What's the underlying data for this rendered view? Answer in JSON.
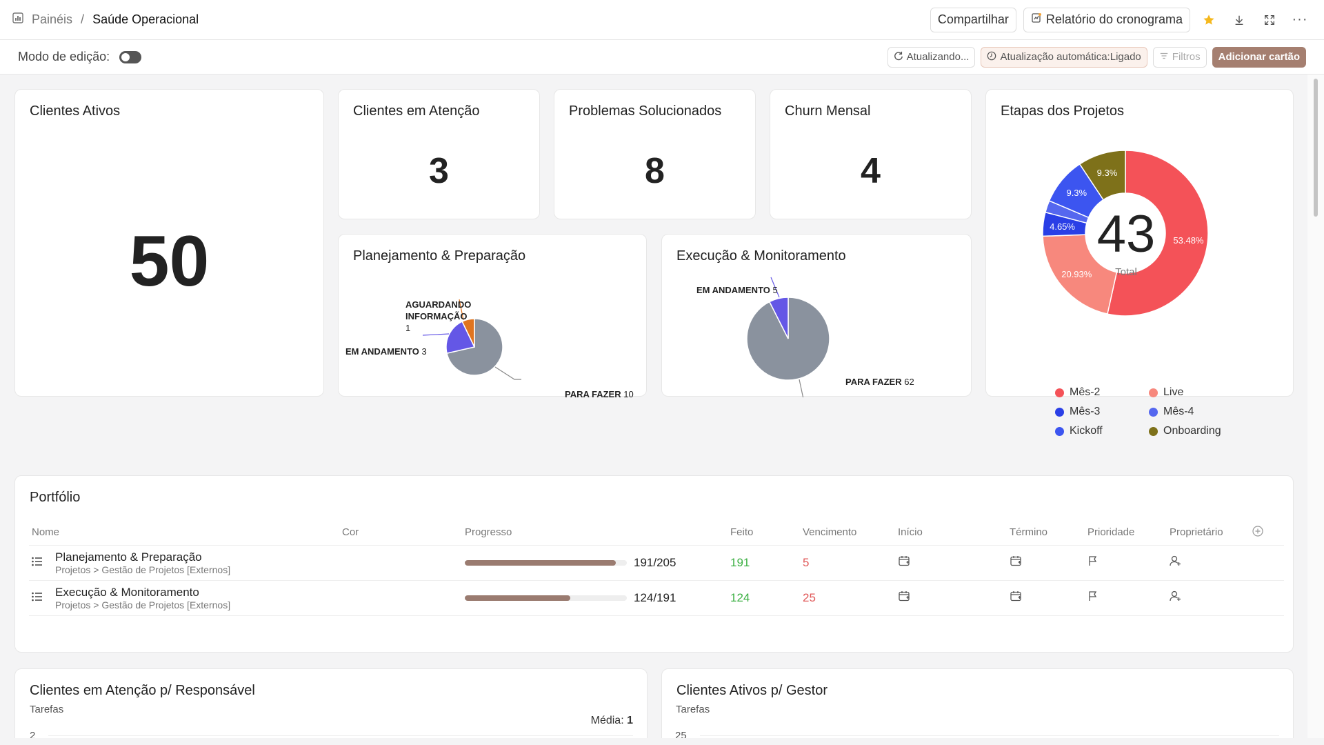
{
  "breadcrumb": {
    "parent": "Painéis",
    "separator": "/",
    "current": "Saúde Operacional"
  },
  "topbar": {
    "share": "Compartilhar",
    "report": "Relatório do cronograma"
  },
  "subbar": {
    "edit_mode": "Modo de edição:",
    "refreshing": "Atualizando...",
    "auto_refresh": "Atualização automática:Ligado",
    "filters": "Filtros",
    "add_card": "Adicionar cartão"
  },
  "cards": {
    "active_clients": {
      "title": "Clientes Ativos",
      "value": "50"
    },
    "attention_clients": {
      "title": "Clientes em Atenção",
      "value": "3"
    },
    "solved": {
      "title": "Problemas Solucionados",
      "value": "8"
    },
    "churn": {
      "title": "Churn Mensal",
      "value": "4"
    },
    "planning": {
      "title": "Planejamento & Preparação"
    },
    "execution": {
      "title": "Execução & Monitoramento"
    },
    "stages": {
      "title": "Etapas dos Projetos",
      "total_value": "43",
      "total_label": "Total"
    },
    "portfolio": {
      "title": "Portfólio"
    },
    "attention_by_owner": {
      "title": "Clientes em Atenção p/ Responsável",
      "subtitle": "Tarefas",
      "avg_label": "Média:",
      "avg_value": "1",
      "y_tick": "2"
    },
    "active_by_manager": {
      "title": "Clientes Ativos p/ Gestor",
      "subtitle": "Tarefas",
      "y_tick": "25"
    }
  },
  "chart_data": [
    {
      "type": "pie",
      "title": "Planejamento & Preparação",
      "slices": [
        {
          "label": "PARA FAZER",
          "value": 10,
          "color": "#8a929e"
        },
        {
          "label": "EM ANDAMENTO",
          "value": 3,
          "color": "#6457e6"
        },
        {
          "label": "AGUARDANDO INFORMAÇÃO",
          "value": 1,
          "color": "#e0741f"
        }
      ]
    },
    {
      "type": "pie",
      "title": "Execução & Monitoramento",
      "slices": [
        {
          "label": "PARA FAZER",
          "value": 62,
          "color": "#8a929e"
        },
        {
          "label": "EM ANDAMENTO",
          "value": 5,
          "color": "#6457e6"
        }
      ]
    },
    {
      "type": "pie",
      "title": "Etapas dos Projetos",
      "donut": true,
      "slices": [
        {
          "label": "Mês-2",
          "value": 53.48,
          "color": "#f45258"
        },
        {
          "label": "Live",
          "value": 20.93,
          "color": "#f7887d"
        },
        {
          "label": "Mês-3",
          "value": 4.65,
          "color": "#2a3fe6"
        },
        {
          "label": "Mês-4",
          "value": 2.33,
          "color": "#5567ef"
        },
        {
          "label": "Kickoff",
          "value": 9.3,
          "color": "#3c55f0"
        },
        {
          "label": "Onboarding",
          "value": 9.3,
          "color": "#7e711a"
        }
      ],
      "legend": [
        "Mês-2",
        "Live",
        "Mês-3",
        "Mês-4",
        "Kickoff",
        "Onboarding"
      ]
    }
  ],
  "pie_labels": {
    "planning": {
      "waiting_line1": "AGUARDANDO",
      "waiting_line2": "INFORMAÇÃO",
      "waiting_n": "1",
      "doing": "EM ANDAMENTO",
      "doing_n": "3",
      "todo": "PARA FAZER",
      "todo_n": "10"
    },
    "execution": {
      "doing": "EM ANDAMENTO",
      "doing_n": "5",
      "todo": "PARA FAZER",
      "todo_n": "62"
    },
    "stages": {
      "s1": "53.48%",
      "s2": "20.93%",
      "s3": "4.65%",
      "s4": "9.3%",
      "s5": "9.3%"
    }
  },
  "portfolio": {
    "columns": [
      "Nome",
      "Cor",
      "Progresso",
      "Feito",
      "Vencimento",
      "Início",
      "Término",
      "Prioridade",
      "Proprietário"
    ],
    "rows": [
      {
        "name": "Planejamento & Preparação",
        "path": "Projetos > Gestão de Projetos [Externos]",
        "progress": "191/205",
        "progress_ratio": 0.9317,
        "done": "191",
        "due": "5"
      },
      {
        "name": "Execução & Monitoramento",
        "path": "Projetos > Gestão de Projetos [Externos]",
        "progress": "124/191",
        "progress_ratio": 0.6492,
        "done": "124",
        "due": "25"
      }
    ]
  }
}
